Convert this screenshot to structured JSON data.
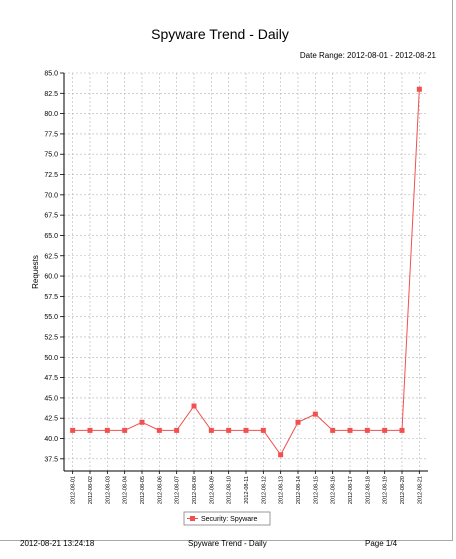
{
  "report": {
    "title": "Spyware Trend - Daily",
    "date_range": "Date Range: 2012-08-01 - 2012-08-21"
  },
  "footer": {
    "timestamp": "2012-08-21 13:24:18",
    "report_name": "Spyware Trend - Daily",
    "page": "Page 1/4"
  },
  "colors": {
    "series": "#f05050",
    "grid": "#b4b4b4",
    "axis": "#000000"
  },
  "chart_data": {
    "type": "line",
    "title": "Spyware Trend - Daily",
    "xlabel": "",
    "ylabel": "Requests",
    "ylim": [
      36.0,
      85.0
    ],
    "yticks": [
      37.5,
      40.0,
      42.5,
      45.0,
      47.5,
      50.0,
      52.5,
      55.0,
      57.5,
      60.0,
      62.5,
      65.0,
      67.5,
      70.0,
      72.5,
      75.0,
      77.5,
      80.0,
      82.5,
      85.0
    ],
    "grid": true,
    "legend_position": "bottom",
    "categories": [
      "2012-08-01",
      "2012-08-02",
      "2012-08-03",
      "2012-08-04",
      "2012-08-05",
      "2012-08-06",
      "2012-08-07",
      "2012-08-08",
      "2012-08-09",
      "2012-08-10",
      "2012-08-11",
      "2012-08-12",
      "2012-08-13",
      "2012-08-14",
      "2012-08-15",
      "2012-08-16",
      "2012-08-17",
      "2012-08-18",
      "2012-08-19",
      "2012-08-20",
      "2012-08-21"
    ],
    "series": [
      {
        "name": "Security: Spyware",
        "values": [
          41,
          41,
          41,
          41,
          42,
          41,
          41,
          44,
          41,
          41,
          41,
          41,
          38,
          42,
          43,
          41,
          41,
          41,
          41,
          41,
          83
        ]
      }
    ]
  }
}
